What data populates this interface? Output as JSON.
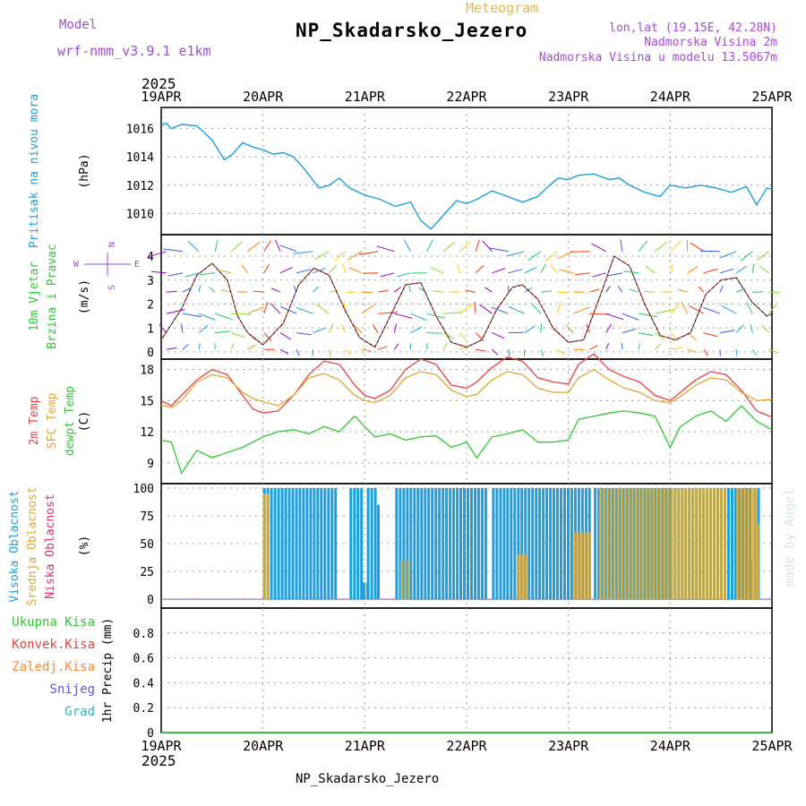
{
  "header": {
    "title": "NP_Skadarsko_Jezero",
    "subtitle": "Meteogram",
    "model_label": "Model",
    "model_name": "wrf-nmm_v3.9.1 e1km",
    "location_lines": [
      "lon,lat (19.15E, 42.28N)",
      "Nadmorska Visina 2m",
      "Nadmorska Visina u modelu 13.5067m"
    ],
    "footer": "NP_Skadarsko_Jezero",
    "credit": "made by Angel"
  },
  "time_axis": {
    "year": "2025",
    "labels": [
      "19APR",
      "20APR",
      "21APR",
      "22APR",
      "23APR",
      "24APR",
      "25APR"
    ]
  },
  "colors": {
    "pressure": "#1aa0e0",
    "temp2m": "#e84040",
    "sfc_temp": "#e0a830",
    "dewpt": "#30c830",
    "high_cloud": "#1aa0e0",
    "mid_cloud": "#e0a830",
    "low_cloud": "#e03070"
  },
  "chart_data": [
    {
      "type": "line",
      "panel": "pressure",
      "ylabel_left": "Pritisak na nivou mora",
      "unit": "(hPa)",
      "ylim": [
        1008.5,
        1017.5
      ],
      "yticks": [
        1010,
        1012,
        1014,
        1016
      ],
      "grid": true,
      "x": [
        0,
        0.05,
        0.1,
        0.2,
        0.35,
        0.5,
        0.62,
        0.7,
        0.8,
        0.9,
        1.0,
        1.1,
        1.2,
        1.3,
        1.4,
        1.55,
        1.65,
        1.75,
        1.85,
        2.0,
        2.15,
        2.3,
        2.45,
        2.55,
        2.65,
        2.75,
        2.9,
        3.0,
        3.1,
        3.25,
        3.4,
        3.55,
        3.7,
        3.8,
        3.9,
        4.0,
        4.1,
        4.25,
        4.4,
        4.5,
        4.6,
        4.75,
        4.9,
        5.0,
        5.15,
        5.3,
        5.45,
        5.6,
        5.75,
        5.85,
        5.95,
        6.0
      ],
      "series": [
        {
          "name": "",
          "values": [
            1016.2,
            1016.4,
            1016.0,
            1016.3,
            1016.2,
            1015.2,
            1013.8,
            1014.2,
            1015.0,
            1014.7,
            1014.5,
            1014.2,
            1014.3,
            1014.0,
            1013.2,
            1011.8,
            1012.0,
            1012.5,
            1011.8,
            1011.3,
            1011.0,
            1010.5,
            1010.8,
            1009.5,
            1008.9,
            1009.7,
            1010.9,
            1010.7,
            1011.0,
            1011.6,
            1011.2,
            1010.8,
            1011.2,
            1011.9,
            1012.5,
            1012.4,
            1012.7,
            1012.8,
            1012.4,
            1012.5,
            1012.0,
            1011.5,
            1011.2,
            1012.0,
            1011.8,
            1012.0,
            1011.8,
            1011.5,
            1011.9,
            1010.6,
            1011.8,
            1011.7
          ]
        }
      ]
    },
    {
      "type": "line",
      "panel": "wind",
      "ylabel_left": "10m Vjetar",
      "ylabel_left2": "Brzina i Pravac",
      "unit": "(m/s)",
      "compass": {
        "west": "W",
        "east": "E",
        "north": "N",
        "south": "S"
      },
      "ylim": [
        -0.3,
        4.9
      ],
      "yticks": [
        0,
        1,
        2,
        3,
        4
      ],
      "grid": true,
      "x": [
        0,
        0.2,
        0.35,
        0.5,
        0.65,
        0.75,
        0.85,
        1.0,
        1.2,
        1.35,
        1.5,
        1.65,
        1.8,
        1.95,
        2.1,
        2.25,
        2.4,
        2.55,
        2.7,
        2.85,
        3.0,
        3.15,
        3.3,
        3.45,
        3.55,
        3.7,
        3.85,
        4.0,
        4.15,
        4.3,
        4.45,
        4.6,
        4.75,
        4.9,
        5.05,
        5.2,
        5.35,
        5.5,
        5.65,
        5.8,
        5.95,
        6.0
      ],
      "series": [
        {
          "name": "",
          "values": [
            0.5,
            1.8,
            3.2,
            3.7,
            3.0,
            1.5,
            0.8,
            0.3,
            1.2,
            2.8,
            3.5,
            3.2,
            1.8,
            0.6,
            0.2,
            1.5,
            2.8,
            2.9,
            1.5,
            0.4,
            0.2,
            0.5,
            1.8,
            2.7,
            2.8,
            2.2,
            1.0,
            0.4,
            0.5,
            2.2,
            4.0,
            3.6,
            2.0,
            0.7,
            0.5,
            0.8,
            2.4,
            3.0,
            3.1,
            2.1,
            1.5,
            1.6
          ]
        }
      ]
    },
    {
      "type": "line",
      "panel": "temperature",
      "ylabel_left": [
        "2m Temp",
        "SFC Temp",
        "dewpt Temp"
      ],
      "unit": "(C)",
      "ylim": [
        7,
        19
      ],
      "yticks": [
        9,
        12,
        15,
        18
      ],
      "grid": true,
      "x": [
        0,
        0.1,
        0.2,
        0.35,
        0.5,
        0.65,
        0.8,
        0.9,
        1.0,
        1.15,
        1.3,
        1.45,
        1.6,
        1.75,
        1.9,
        2.0,
        2.1,
        2.25,
        2.4,
        2.55,
        2.7,
        2.85,
        3.0,
        3.1,
        3.25,
        3.4,
        3.55,
        3.7,
        3.85,
        4.0,
        4.1,
        4.25,
        4.4,
        4.55,
        4.7,
        4.85,
        5.0,
        5.1,
        5.25,
        5.4,
        5.55,
        5.7,
        5.85,
        6.0
      ],
      "series": [
        {
          "name": "2m Temp",
          "values": [
            15.0,
            14.5,
            15.5,
            17.0,
            18.0,
            17.5,
            15.5,
            14.2,
            13.8,
            14.0,
            15.5,
            17.5,
            18.8,
            18.5,
            16.5,
            15.5,
            15.2,
            16.0,
            18.0,
            19.0,
            18.5,
            16.5,
            16.2,
            16.8,
            18.2,
            19.2,
            18.8,
            17.2,
            16.8,
            16.6,
            18.5,
            19.5,
            18.0,
            17.3,
            16.8,
            15.5,
            15.0,
            15.8,
            17.0,
            17.8,
            17.5,
            16.0,
            14.0,
            13.4
          ]
        },
        {
          "name": "SFC Temp",
          "values": [
            14.6,
            14.3,
            15.0,
            16.8,
            17.5,
            17.2,
            15.8,
            15.2,
            14.9,
            14.5,
            15.5,
            17.2,
            17.6,
            17.0,
            15.5,
            15.0,
            14.8,
            15.5,
            17.2,
            17.8,
            17.5,
            16.0,
            15.4,
            15.6,
            17.0,
            17.8,
            17.5,
            16.2,
            15.8,
            15.8,
            17.2,
            18.0,
            17.0,
            16.2,
            15.8,
            15.0,
            14.8,
            15.4,
            16.5,
            17.2,
            17.0,
            15.8,
            15.0,
            15.1
          ]
        },
        {
          "name": "dewpt Temp",
          "values": [
            11.2,
            11.0,
            8.0,
            10.2,
            9.5,
            10.0,
            10.5,
            11.0,
            11.5,
            12.0,
            12.2,
            11.8,
            12.5,
            12.0,
            13.5,
            12.5,
            11.5,
            11.8,
            11.2,
            11.5,
            11.6,
            10.5,
            11.0,
            9.5,
            11.5,
            11.8,
            12.2,
            11.0,
            11.0,
            11.2,
            13.2,
            13.5,
            13.8,
            14.0,
            13.8,
            13.5,
            10.5,
            12.5,
            13.5,
            14.0,
            13.0,
            14.5,
            13.0,
            12.2
          ]
        }
      ]
    },
    {
      "type": "bar",
      "panel": "cloud",
      "ylabel_left": [
        "Visoka Oblacnost",
        "Srednja Oblacnost",
        "Niska Oblacnost"
      ],
      "unit": "(%)",
      "ylim": [
        -8,
        104
      ],
      "yticks": [
        0,
        25,
        50,
        75,
        100
      ],
      "yticklabels": [
        "0",
        "25",
        "50",
        "75",
        "100"
      ],
      "grid": true,
      "series": [
        {
          "name": "Visoka Oblacnost",
          "ranges": [
            [
              1.0,
              1.7,
              100
            ],
            [
              1.85,
              1.98,
              100
            ],
            [
              1.98,
              2.02,
              15
            ],
            [
              2.02,
              2.1,
              100
            ],
            [
              2.12,
              2.14,
              85
            ],
            [
              2.3,
              3.2,
              100
            ],
            [
              3.25,
              4.2,
              100
            ],
            [
              4.25,
              4.7,
              100
            ],
            [
              4.7,
              5.0,
              100
            ],
            [
              5.0,
              5.78,
              100
            ],
            [
              5.78,
              5.8,
              35
            ],
            [
              5.82,
              5.86,
              100
            ]
          ]
        },
        {
          "name": "Srednja Oblacnost",
          "ranges": [
            [
              1.0,
              1.05,
              95
            ],
            [
              2.35,
              2.45,
              35
            ],
            [
              3.5,
              3.6,
              40
            ],
            [
              4.05,
              4.2,
              60
            ],
            [
              4.3,
              5.0,
              100
            ],
            [
              5.0,
              5.55,
              100
            ],
            [
              5.65,
              5.85,
              100
            ],
            [
              5.85,
              5.87,
              68
            ]
          ]
        },
        {
          "name": "Niska Oblacnost",
          "ranges": []
        }
      ]
    },
    {
      "type": "line",
      "panel": "precip",
      "ylabel_left": [
        "Ukupna Kisa",
        "Konvek.Kisa",
        "Zaledj.Kisa",
        "Snijeg",
        "Grad"
      ],
      "unit": "1hr Precip (mm)",
      "ylim": [
        0,
        1.0
      ],
      "yticks": [
        0,
        0.2,
        0.4,
        0.6,
        0.8
      ],
      "yticklabels": [
        "0",
        "0.2",
        "0.4",
        "0.6",
        "0.8"
      ],
      "grid": true,
      "series": [
        {
          "name": "Ukupna Kisa",
          "values": [
            0,
            0,
            0,
            0,
            0,
            0,
            0
          ]
        }
      ]
    }
  ]
}
